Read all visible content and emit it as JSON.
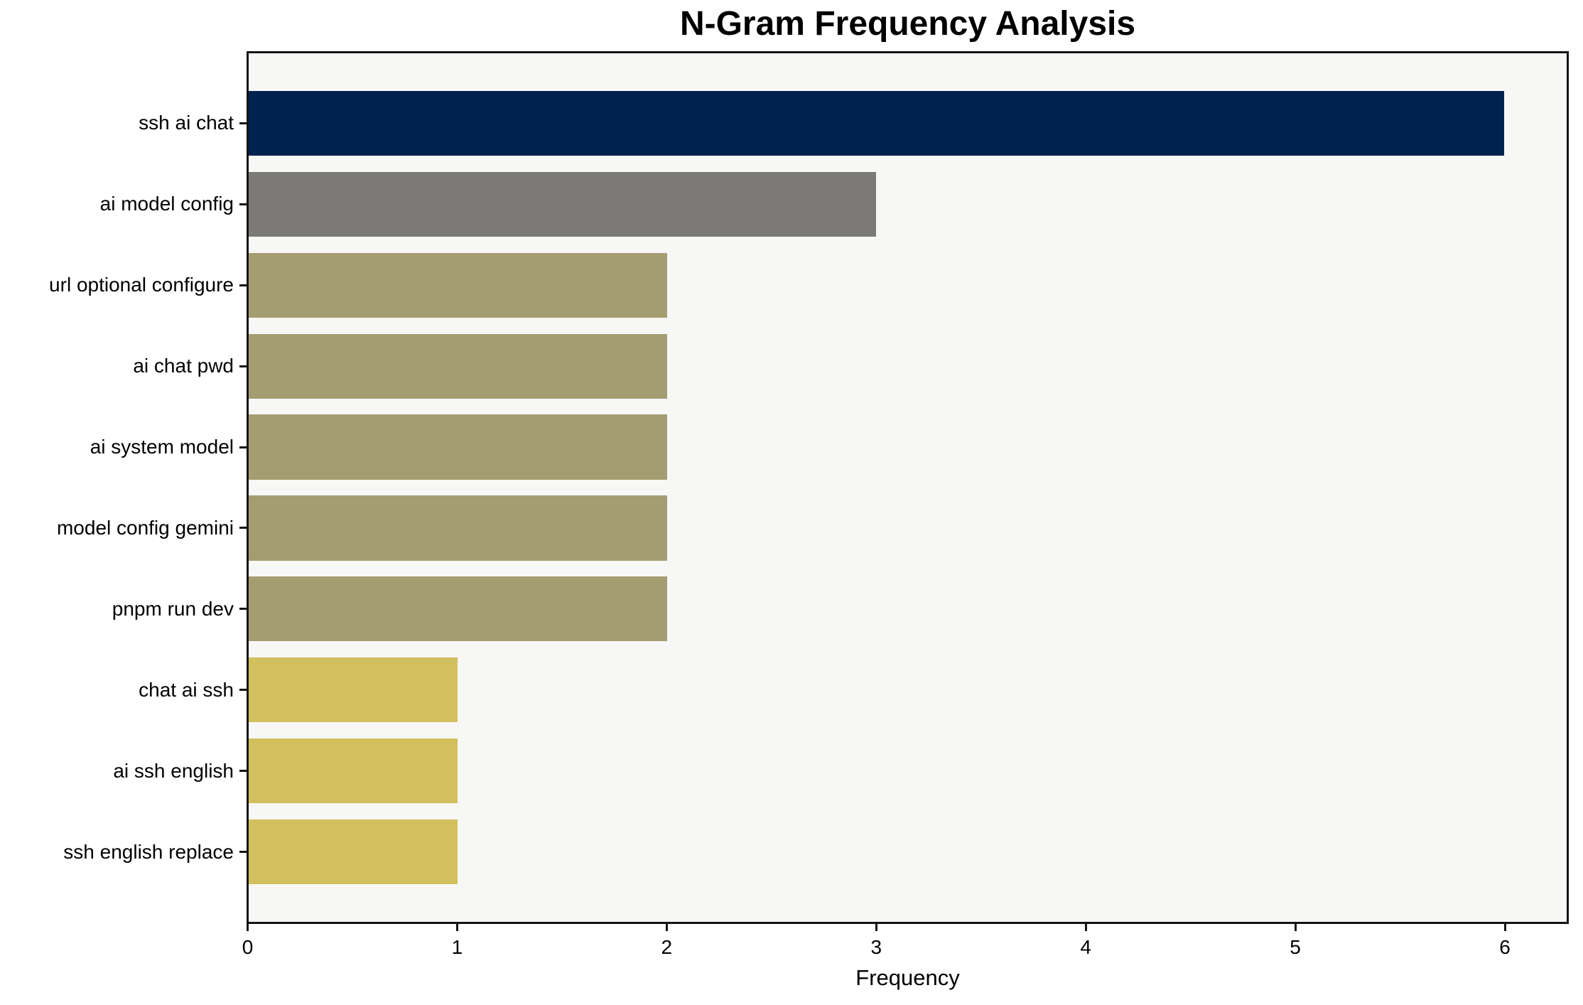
{
  "chart_data": {
    "type": "bar",
    "orientation": "horizontal",
    "title": "N-Gram Frequency Analysis",
    "xlabel": "Frequency",
    "ylabel": "",
    "categories": [
      "ssh ai chat",
      "ai model config",
      "url optional configure",
      "ai chat pwd",
      "ai system model",
      "model config gemini",
      "pnpm run dev",
      "chat ai ssh",
      "ai ssh english",
      "ssh english replace"
    ],
    "values": [
      6,
      3,
      2,
      2,
      2,
      2,
      2,
      1,
      1,
      1
    ],
    "bar_colors": [
      "#00224e",
      "#7b7a77",
      "#a59d72",
      "#a59d72",
      "#a59d72",
      "#a59d72",
      "#a59d72",
      "#d2c05e",
      "#d2c05e",
      "#d2c05e"
    ],
    "xticks": [
      0,
      1,
      2,
      3,
      4,
      5,
      6
    ],
    "xlim": [
      0,
      6.3
    ],
    "grid": false,
    "legend_position": "none",
    "colors": {
      "plot_background": "#f7f7f6",
      "figure_background": "#ffffff",
      "axis": "#141414",
      "text": "#000000"
    }
  }
}
